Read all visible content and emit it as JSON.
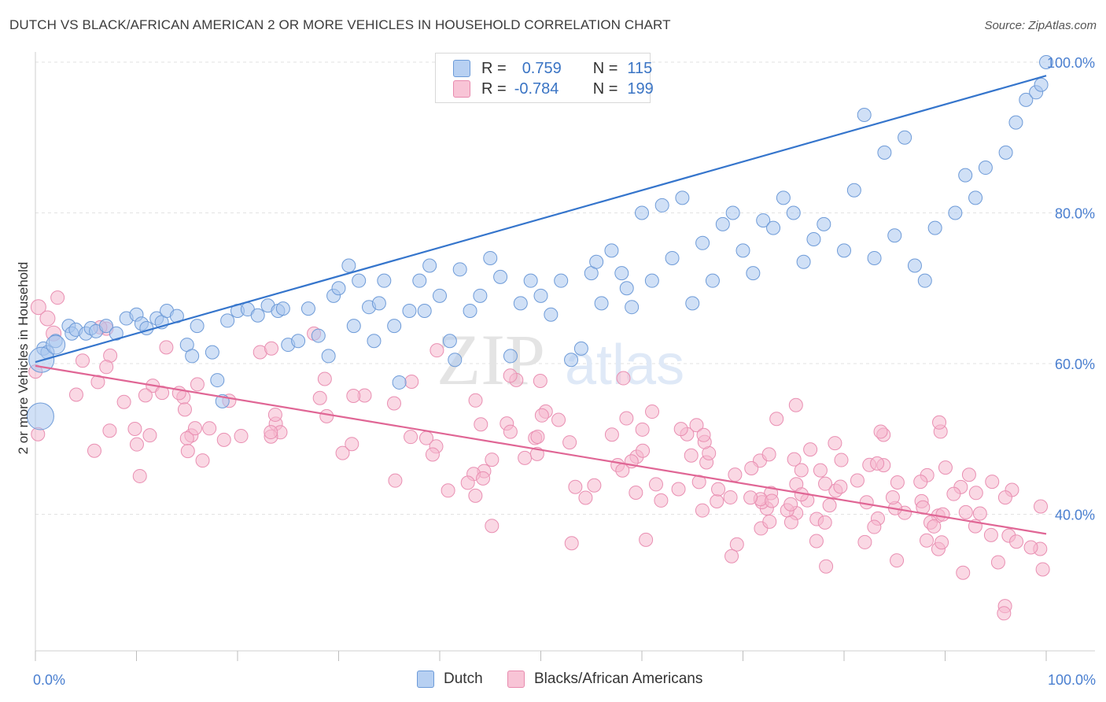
{
  "title": "DUTCH VS BLACK/AFRICAN AMERICAN 2 OR MORE VEHICLES IN HOUSEHOLD CORRELATION CHART",
  "source": "Source: ZipAtlas.com",
  "watermark": {
    "zip": "ZIP",
    "atlas": "atlas"
  },
  "colors": {
    "blue": "#3575cc",
    "blue_fill": "#a9c6ee",
    "pink": "#e06695",
    "pink_fill": "#f5b8ce",
    "axis_text": "#4a7fd0"
  },
  "legend": {
    "rows": [
      {
        "r_label": "R =",
        "r_value": "0.759",
        "n_label": "N =",
        "n_value": "115"
      },
      {
        "r_label": "R =",
        "r_value": "-0.784",
        "n_label": "N =",
        "n_value": "199"
      }
    ]
  },
  "bottom_legend": {
    "dutch": "Dutch",
    "black": "Blacks/African Americans"
  },
  "chart_data": {
    "type": "scatter",
    "title": "DUTCH VS BLACK/AFRICAN AMERICAN 2 OR MORE VEHICLES IN HOUSEHOLD CORRELATION CHART",
    "xlabel": "",
    "ylabel": "2 or more Vehicles in Household",
    "xlim": [
      0,
      100
    ],
    "ylim": [
      20,
      102
    ],
    "x_ticks": [
      "0.0%",
      "100.0%"
    ],
    "y_ticks": [
      {
        "value": 40,
        "label": "40.0%"
      },
      {
        "value": 60,
        "label": "60.0%"
      },
      {
        "value": 80,
        "label": "80.0%"
      },
      {
        "value": 100,
        "label": "100.0%"
      }
    ],
    "grid": true,
    "legend_position": "top-center",
    "series": [
      {
        "name": "Dutch",
        "r": 0.759,
        "n": 115,
        "trend": [
          [
            0,
            60.2
          ],
          [
            100,
            98.2
          ]
        ],
        "points": [
          [
            0.8,
            62
          ],
          [
            1.2,
            61.5
          ],
          [
            2,
            63
          ],
          [
            3.3,
            65
          ],
          [
            3.6,
            64
          ],
          [
            4,
            64.5
          ],
          [
            5,
            64
          ],
          [
            5.5,
            64.7
          ],
          [
            6,
            64.3
          ],
          [
            7,
            65
          ],
          [
            8,
            64
          ],
          [
            9,
            66
          ],
          [
            10,
            66.5
          ],
          [
            10.5,
            65.3
          ],
          [
            11,
            64.7
          ],
          [
            12,
            66
          ],
          [
            12.5,
            65.5
          ],
          [
            13,
            67
          ],
          [
            14,
            66.3
          ],
          [
            15,
            62.5
          ],
          [
            15.5,
            61
          ],
          [
            16,
            65
          ],
          [
            17.5,
            61.5
          ],
          [
            18,
            57.8
          ],
          [
            18.5,
            55
          ],
          [
            19,
            65.7
          ],
          [
            20,
            67
          ],
          [
            21,
            67.2
          ],
          [
            22,
            66.4
          ],
          [
            23,
            67.7
          ],
          [
            24,
            67
          ],
          [
            24.5,
            67.3
          ],
          [
            25,
            62.5
          ],
          [
            26,
            63
          ],
          [
            27,
            67.3
          ],
          [
            28,
            63.7
          ],
          [
            29,
            61
          ],
          [
            29.5,
            69
          ],
          [
            30,
            70
          ],
          [
            31,
            73
          ],
          [
            31.5,
            65
          ],
          [
            32,
            71
          ],
          [
            33,
            67.5
          ],
          [
            33.5,
            63
          ],
          [
            34,
            68
          ],
          [
            34.5,
            71
          ],
          [
            35.5,
            65
          ],
          [
            36,
            57.5
          ],
          [
            37,
            67
          ],
          [
            38,
            71
          ],
          [
            38.5,
            67
          ],
          [
            39,
            73
          ],
          [
            40,
            69
          ],
          [
            41,
            63
          ],
          [
            41.5,
            60.5
          ],
          [
            42,
            72.5
          ],
          [
            43,
            67
          ],
          [
            44,
            69
          ],
          [
            45,
            74
          ],
          [
            46,
            71.5
          ],
          [
            47,
            61
          ],
          [
            48,
            68
          ],
          [
            49,
            71
          ],
          [
            50,
            69
          ],
          [
            51,
            66.5
          ],
          [
            52,
            71
          ],
          [
            53,
            60.5
          ],
          [
            54,
            62
          ],
          [
            55,
            72
          ],
          [
            55.5,
            73.5
          ],
          [
            56,
            68
          ],
          [
            57,
            75
          ],
          [
            58,
            72
          ],
          [
            58.5,
            70
          ],
          [
            59,
            67.5
          ],
          [
            60,
            80
          ],
          [
            61,
            71
          ],
          [
            62,
            81
          ],
          [
            63,
            74
          ],
          [
            64,
            82
          ],
          [
            65,
            68
          ],
          [
            66,
            76
          ],
          [
            67,
            71
          ],
          [
            68,
            78.5
          ],
          [
            69,
            80
          ],
          [
            70,
            75
          ],
          [
            71,
            72
          ],
          [
            72,
            79
          ],
          [
            73,
            78
          ],
          [
            74,
            82
          ],
          [
            75,
            80
          ],
          [
            76,
            73.5
          ],
          [
            77,
            76.5
          ],
          [
            78,
            78.5
          ],
          [
            80,
            75
          ],
          [
            81,
            83
          ],
          [
            82,
            93
          ],
          [
            83,
            74
          ],
          [
            84,
            88
          ],
          [
            85,
            77
          ],
          [
            86,
            90
          ],
          [
            87,
            73
          ],
          [
            88,
            71
          ],
          [
            89,
            78
          ],
          [
            91,
            80
          ],
          [
            92,
            85
          ],
          [
            93,
            82
          ],
          [
            94,
            86
          ],
          [
            96,
            88
          ],
          [
            97,
            92
          ],
          [
            98,
            95
          ],
          [
            99,
            96
          ],
          [
            100,
            100
          ],
          [
            99.5,
            97
          ]
        ],
        "sizes": {
          "large": [
            [
              0.8,
              62,
              1.6
            ],
            [
              1.2,
              61.5,
              1.4
            ]
          ]
        }
      },
      {
        "name": "Blacks/African Americans",
        "r": -0.784,
        "n": 199,
        "trend": [
          [
            0,
            59.7
          ],
          [
            100,
            37.4
          ]
        ]
      }
    ]
  }
}
